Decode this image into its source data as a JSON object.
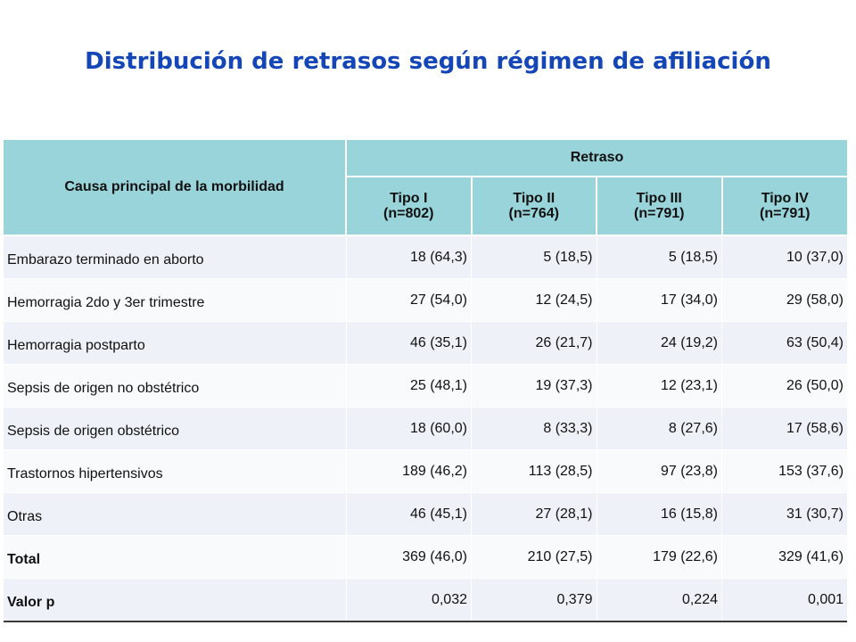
{
  "title": "Distribución de retrasos según régimen de afiliación",
  "table": {
    "row_header": "Causa principal de la morbilidad",
    "group_header": "Retraso",
    "columns": [
      {
        "line1": "Tipo I",
        "line2": "(n=802)"
      },
      {
        "line1": "Tipo II",
        "line2": "(n=764)"
      },
      {
        "line1": "Tipo III",
        "line2": "(n=791)"
      },
      {
        "line1": "Tipo IV",
        "line2": "(n=791)"
      }
    ],
    "rows": [
      {
        "label": "Embarazo terminado en aborto",
        "values": [
          "18 (64,3)",
          "5 (18,5)",
          "5 (18,5)",
          "10 (37,0)"
        ]
      },
      {
        "label": "Hemorragia 2do y 3er trimestre",
        "values": [
          "27 (54,0)",
          "12 (24,5)",
          "17 (34,0)",
          "29 (58,0)"
        ]
      },
      {
        "label": "Hemorragia postparto",
        "values": [
          "46 (35,1)",
          "26 (21,7)",
          "24 (19,2)",
          "63 (50,4)"
        ]
      },
      {
        "label": "Sepsis de origen no obstétrico",
        "values": [
          "25 (48,1)",
          "19 (37,3)",
          "12 (23,1)",
          "26 (50,0)"
        ]
      },
      {
        "label": "Sepsis de origen obstétrico",
        "values": [
          "18 (60,0)",
          "8 (33,3)",
          "8 (27,6)",
          "17 (58,6)"
        ]
      },
      {
        "label": "Trastornos hipertensivos",
        "values": [
          "189 (46,2)",
          "113 (28,5)",
          "97 (23,8)",
          "153 (37,6)"
        ]
      },
      {
        "label": "Otras",
        "values": [
          "46 (45,1)",
          "27 (28,1)",
          "16 (15,8)",
          "31 (30,7)"
        ]
      },
      {
        "label": "Total",
        "values": [
          "369 (46,0)",
          "210 (27,5)",
          "179 (22,6)",
          "329 (41,6)"
        ]
      },
      {
        "label": "Valor p",
        "values": [
          "0,032",
          "0,379",
          "0,224",
          "0,001"
        ]
      }
    ]
  },
  "colors": {
    "title": "#1446b8",
    "header_bg": "#99d4da",
    "row_odd_bg": "#eef1f7",
    "row_even_bg": "#f9fafc"
  }
}
